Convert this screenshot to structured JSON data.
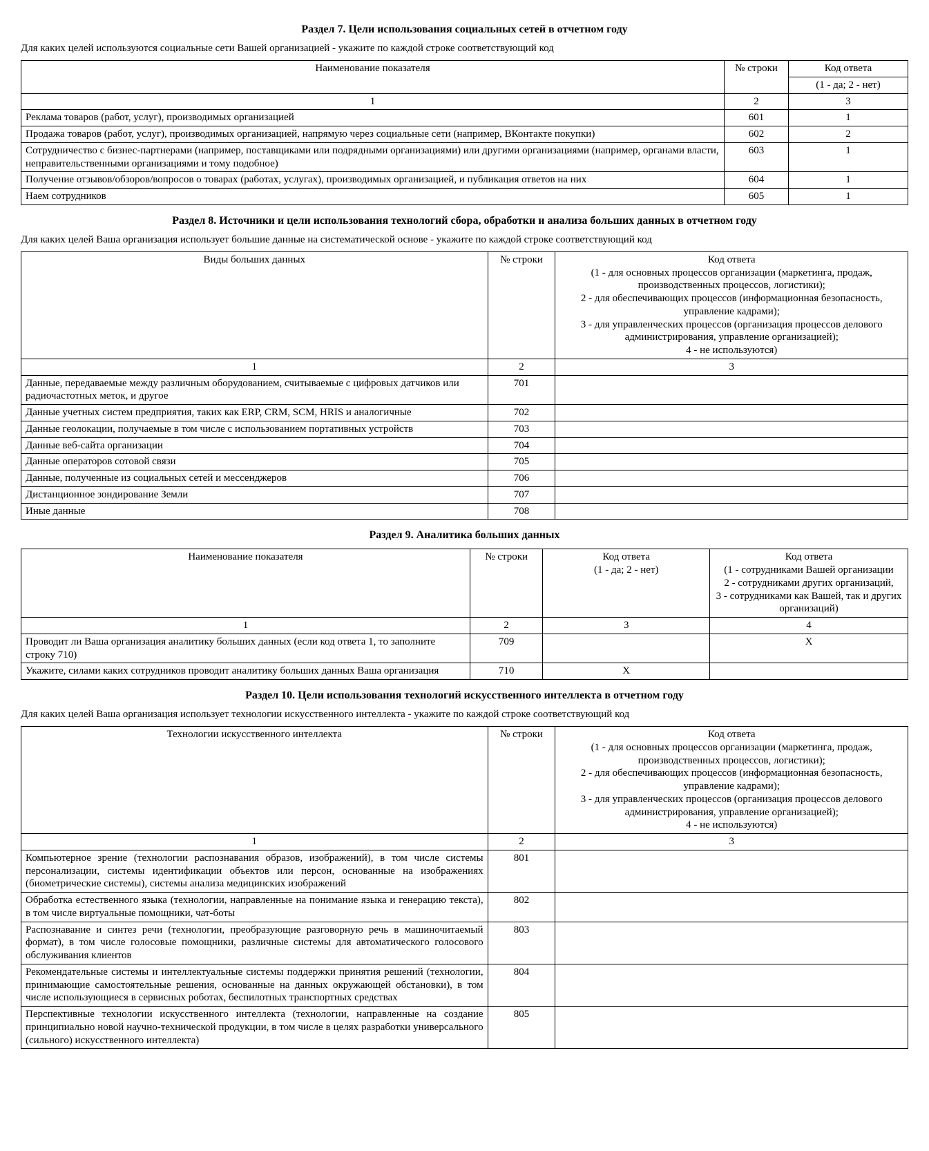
{
  "section7": {
    "title": "Раздел 7. Цели использования социальных сетей в отчетном году",
    "lead": "Для каких целей используются социальные сети Вашей организацией - укажите по каждой строке соответствующий код",
    "head_name": "Наименование показателя",
    "head_row": "№ строки",
    "head_ans": "Код ответа",
    "head_ans_sub": "(1 - да; 2 - нет)",
    "numrow": {
      "c1": "1",
      "c2": "2",
      "c3": "3"
    },
    "rows": [
      {
        "name": "Реклама товаров (работ, услуг), производимых организацией",
        "row": "601",
        "ans": "1"
      },
      {
        "name": "Продажа товаров (работ, услуг), производимых организацией, напрямую через социальные сети (например, ВКонтакте покупки)",
        "row": "602",
        "ans": "2"
      },
      {
        "name": "Сотрудничество с бизнес-партнерами (например, поставщиками или подрядными организациями) или другими организациями (например, органами власти, неправительственными организациями и тому подобное)",
        "row": "603",
        "ans": "1"
      },
      {
        "name": "Получение отзывов/обзоров/вопросов о товарах (работах, услугах), производимых организацией, и публикация ответов на них",
        "row": "604",
        "ans": "1"
      },
      {
        "name": "Наем сотрудников",
        "row": "605",
        "ans": "1"
      }
    ]
  },
  "section8": {
    "title": "Раздел 8. Источники и цели использования технологий сбора, обработки и анализа больших данных в отчетном году",
    "lead": "Для каких целей Ваша организация использует большие данные на систематической основе - укажите по каждой строке соответствующий код",
    "head_name": "Виды больших данных",
    "head_row": "№ строки",
    "head_ans": "Код ответа",
    "ans_l1": "(1 - для основных процессов организации (маркетинга, продаж, производственных процессов, логистики);",
    "ans_l2": "2 - для обеспечивающих процессов (информационная безопасность, управление кадрами);",
    "ans_l3": "3 - для управленческих процессов (организация процессов делового администрирования, управление организацией);",
    "ans_l4": "4 - не используются)",
    "numrow": {
      "c1": "1",
      "c2": "2",
      "c3": "3"
    },
    "rows": [
      {
        "name": "Данные, передаваемые между различным оборудованием, считываемые с цифровых датчиков или радиочастотных меток, и другое",
        "row": "701",
        "ans": ""
      },
      {
        "name": "Данные учетных систем предприятия, таких как ERP, CRM, SCM, HRIS и аналогичные",
        "row": "702",
        "ans": ""
      },
      {
        "name": "Данные геолокации, получаемые в том числе с использованием портативных устройств",
        "row": "703",
        "ans": ""
      },
      {
        "name": "Данные веб-сайта организации",
        "row": "704",
        "ans": ""
      },
      {
        "name": "Данные операторов сотовой связи",
        "row": "705",
        "ans": ""
      },
      {
        "name": "Данные, полученные из социальных сетей и мессенджеров",
        "row": "706",
        "ans": ""
      },
      {
        "name": "Дистанционное зондирование Земли",
        "row": "707",
        "ans": ""
      },
      {
        "name": "Иные данные",
        "row": "708",
        "ans": ""
      }
    ]
  },
  "section9": {
    "title": "Раздел 9. Аналитика больших данных",
    "head_name": "Наименование показателя",
    "head_row": "№ строки",
    "head_a1": "Код ответа",
    "head_a1_sub": "(1 - да; 2 - нет)",
    "head_a2": "Код ответа",
    "a2_l1": "(1 - сотрудниками Вашей организации",
    "a2_l2": "2 - сотрудниками других организаций,",
    "a2_l3": "3 - сотрудниками как Вашей, так и других организаций)",
    "numrow": {
      "c1": "1",
      "c2": "2",
      "c3": "3",
      "c4": "4"
    },
    "rows": [
      {
        "name": "Проводит ли Ваша организация аналитику больших данных (если код ответа 1, то заполните строку 710)",
        "row": "709",
        "a1": "",
        "a2": "Х"
      },
      {
        "name": "Укажите, силами каких сотрудников проводит аналитику больших данных Ваша организация",
        "row": "710",
        "a1": "Х",
        "a2": ""
      }
    ]
  },
  "section10": {
    "title": "Раздел 10. Цели использования технологий искусственного интеллекта в отчетном году",
    "lead": "Для каких целей Ваша организация использует технологии искусственного интеллекта - укажите по каждой строке соответствующий код",
    "head_name": "Технологии искусственного интеллекта",
    "head_row": "№ строки",
    "head_ans": "Код ответа",
    "ans_l1": "(1 - для основных процессов организации (маркетинга, продаж, производственных процессов, логистики);",
    "ans_l2": "2 - для обеспечивающих процессов (информационная безопасность, управление кадрами);",
    "ans_l3": "3 - для управленческих процессов (организация процессов делового администрирования, управление организацией);",
    "ans_l4": "4 - не используются)",
    "numrow": {
      "c1": "1",
      "c2": "2",
      "c3": "3"
    },
    "rows": [
      {
        "name": "Компьютерное зрение (технологии распознавания образов, изображений), в том числе системы персонализации, системы идентификации объектов или персон, основанные на изображениях (биометрические системы), системы анализа медицинских изображений",
        "row": "801",
        "ans": ""
      },
      {
        "name": "Обработка естественного языка (технологии, направленные на понимание языка и генерацию текста), в том числе виртуальные помощники, чат-боты",
        "row": "802",
        "ans": ""
      },
      {
        "name": "Распознавание и синтез речи (технологии, преобразующие разговорную речь в машиночитаемый формат), в том числе голосовые помощники, различные системы для автоматического голосового обслуживания клиентов",
        "row": "803",
        "ans": ""
      },
      {
        "name": "Рекомендательные системы и интеллектуальные системы поддержки принятия решений (технологии, принимающие самостоятельные решения, основанные на данных окружающей обстановки), в том числе использующиеся в сервисных роботах, беспилотных транспортных средствах",
        "row": "804",
        "ans": ""
      },
      {
        "name": "Перспективные технологии искусственного интеллекта (технологии, направленные на создание принципиально новой научно-технической продукции, в том числе в целях разработки универсального (сильного) искусственного интеллекта)",
        "row": "805",
        "ans": ""
      }
    ]
  }
}
